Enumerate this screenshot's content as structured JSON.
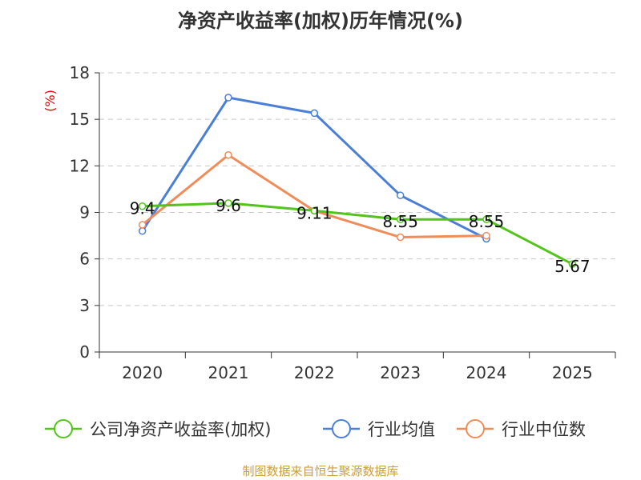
{
  "chart_data": {
    "type": "line",
    "title": "净资产收益率(加权)历年情况(%)",
    "ylabel": "(%)",
    "xlabel": "",
    "categories": [
      "2020",
      "2021",
      "2022",
      "2023",
      "2024",
      "2025"
    ],
    "ylim": [
      0,
      18
    ],
    "yticks": [
      0,
      3,
      6,
      9,
      12,
      15,
      18
    ],
    "grid": true,
    "legend_position": "bottom",
    "series": [
      {
        "name": "公司净资产收益率(加权)",
        "color": "#52c41a",
        "values": [
          9.4,
          9.6,
          9.11,
          8.55,
          8.55,
          5.67
        ],
        "labels": [
          "9.4",
          "9.6",
          "9.11",
          "8.55",
          "8.55",
          "5.67"
        ]
      },
      {
        "name": "行业均值",
        "color": "#4a7fd8",
        "values": [
          7.8,
          16.4,
          15.4,
          10.1,
          7.3,
          null
        ]
      },
      {
        "name": "行业中位数",
        "color": "#f08c5a",
        "values": [
          8.2,
          12.7,
          9.1,
          7.4,
          7.5,
          null
        ]
      }
    ],
    "source": "制图数据来自恒生聚源数据库"
  }
}
